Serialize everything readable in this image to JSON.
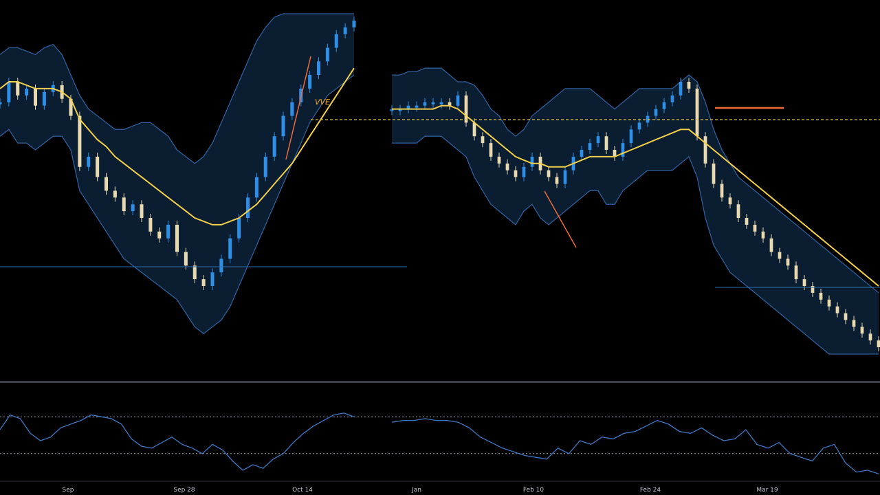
{
  "chart_data": [
    {
      "type": "line",
      "panel": "price",
      "description_of_style": "dark background candlestick price chart with filled bands and moving average",
      "title": "",
      "xlabel": "",
      "ylabel": "",
      "ylim": [
        0,
        100
      ],
      "grid": false,
      "colors": {
        "background": "#000000",
        "band_fill": "#0d2238",
        "band_edge": "#2f5f9a",
        "moving_average": "#f2d04a",
        "candle_up": "#2f8fe6",
        "candle_down": "#e8d9b0",
        "level_line": "#d9c23a",
        "support_line": "#2a6fb0",
        "trend_line": "#f06a3a"
      },
      "x_tick_labels": [
        "Sep",
        "Sep 28",
        "Oct 14",
        "Jan",
        "Feb 10",
        "Feb 24",
        "Mar 19",
        ""
      ],
      "annotation": "VVE",
      "segments": [
        {
          "name": "",
          "x": [
            0,
            1,
            2,
            3,
            4,
            5,
            6,
            7,
            8,
            9,
            10,
            11,
            12,
            13,
            14,
            15,
            16,
            17,
            18,
            19,
            20,
            21,
            22,
            23,
            24,
            25,
            26,
            27,
            28,
            29,
            30,
            31,
            32,
            33,
            34,
            35,
            36,
            37,
            38,
            39,
            40
          ],
          "close": [
            74,
            80,
            76,
            78,
            73,
            77,
            79,
            75,
            70,
            55,
            58,
            52,
            48,
            46,
            42,
            44,
            40,
            36,
            34,
            38,
            30,
            26,
            22,
            20,
            24,
            28,
            34,
            40,
            46,
            52,
            58,
            64,
            70,
            74,
            78,
            82,
            86,
            90,
            94,
            96,
            98
          ],
          "upper": [
            88,
            90,
            90,
            89,
            88,
            90,
            91,
            88,
            82,
            76,
            72,
            70,
            68,
            66,
            66,
            67,
            68,
            68,
            66,
            64,
            60,
            58,
            56,
            58,
            62,
            68,
            74,
            80,
            86,
            92,
            96,
            99,
            100,
            100,
            100,
            100,
            100,
            100,
            100,
            100,
            100
          ],
          "lower": [
            64,
            66,
            62,
            62,
            60,
            62,
            64,
            64,
            60,
            48,
            44,
            40,
            36,
            32,
            28,
            26,
            24,
            22,
            20,
            18,
            16,
            12,
            8,
            6,
            8,
            10,
            14,
            20,
            26,
            32,
            38,
            44,
            50,
            56,
            62,
            68,
            72,
            76,
            78,
            80,
            82
          ],
          "ma": [
            78,
            80,
            80,
            79,
            78,
            78,
            78,
            77,
            75,
            69,
            66,
            63,
            61,
            58,
            56,
            54,
            52,
            50,
            48,
            46,
            44,
            42,
            40,
            39,
            38,
            38,
            39,
            40,
            42,
            44,
            47,
            50,
            53,
            56,
            60,
            64,
            68,
            72,
            76,
            80,
            84
          ]
        },
        {
          "name": "",
          "x": [
            0,
            1,
            2,
            3,
            4,
            5,
            6,
            7,
            8,
            9,
            10,
            11,
            12,
            13,
            14,
            15,
            16,
            17,
            18,
            19,
            20,
            21,
            22,
            23,
            24,
            25,
            26,
            27,
            28,
            29,
            30,
            31,
            32,
            33,
            34,
            35,
            36,
            37,
            38,
            39,
            40,
            41,
            42,
            43,
            44,
            45,
            46,
            47,
            48,
            49,
            50,
            51,
            52,
            53,
            54,
            55,
            56,
            57,
            58,
            59
          ],
          "close": [
            72,
            72,
            73,
            73,
            74,
            74,
            74,
            73,
            76,
            68,
            64,
            62,
            58,
            56,
            54,
            52,
            55,
            58,
            54,
            52,
            50,
            54,
            58,
            60,
            62,
            64,
            60,
            58,
            62,
            66,
            68,
            70,
            72,
            74,
            76,
            80,
            78,
            64,
            56,
            50,
            46,
            44,
            40,
            38,
            36,
            34,
            30,
            28,
            26,
            22,
            20,
            18,
            16,
            14,
            12,
            10,
            8,
            6,
            4,
            2
          ],
          "upper": [
            82,
            82,
            83,
            83,
            84,
            84,
            84,
            82,
            80,
            80,
            79,
            76,
            72,
            70,
            66,
            64,
            66,
            70,
            72,
            74,
            76,
            78,
            78,
            78,
            78,
            76,
            74,
            72,
            74,
            76,
            78,
            78,
            78,
            78,
            78,
            80,
            82,
            80,
            74,
            66,
            60,
            56,
            52,
            50,
            48,
            46,
            44,
            42,
            40,
            38,
            36,
            34,
            32,
            30,
            28,
            26,
            24,
            22,
            20,
            18
          ],
          "lower": [
            62,
            62,
            62,
            62,
            64,
            64,
            64,
            62,
            60,
            58,
            52,
            48,
            44,
            42,
            40,
            38,
            42,
            44,
            40,
            38,
            40,
            42,
            44,
            46,
            48,
            48,
            44,
            44,
            48,
            50,
            52,
            54,
            54,
            54,
            54,
            56,
            58,
            52,
            40,
            32,
            28,
            24,
            22,
            20,
            18,
            16,
            14,
            12,
            10,
            8,
            6,
            4,
            2,
            0,
            0,
            0,
            0,
            0,
            0,
            0
          ],
          "ma": [
            72,
            72,
            72,
            72,
            72,
            72,
            73,
            73,
            72,
            70,
            68,
            66,
            64,
            62,
            60,
            58,
            57,
            56,
            56,
            55,
            55,
            55,
            56,
            57,
            58,
            58,
            58,
            58,
            59,
            60,
            61,
            62,
            63,
            64,
            65,
            66,
            66,
            64,
            62,
            60,
            58,
            56,
            54,
            52,
            50,
            48,
            46,
            44,
            42,
            40,
            38,
            36,
            34,
            32,
            30,
            28,
            26,
            24,
            22,
            20
          ]
        }
      ]
    },
    {
      "type": "line",
      "panel": "oscillator",
      "ylim": [
        0,
        100
      ],
      "grid": false,
      "levels": [
        70,
        30
      ],
      "series": [
        {
          "name": "",
          "values": [
            56,
            72,
            68,
            52,
            44,
            48,
            58,
            62,
            66,
            72,
            70,
            68,
            62,
            46,
            38,
            36,
            42,
            48,
            40,
            36,
            30,
            40,
            34,
            22,
            12,
            18,
            14,
            24,
            30,
            42,
            52,
            60,
            66,
            72,
            74,
            70
          ]
        },
        {
          "name": "",
          "values": [
            64,
            66,
            66,
            68,
            66,
            66,
            64,
            58,
            48,
            42,
            36,
            32,
            28,
            26,
            24,
            36,
            30,
            44,
            40,
            48,
            46,
            52,
            54,
            60,
            66,
            62,
            54,
            52,
            58,
            50,
            44,
            46,
            56,
            40,
            36,
            42,
            30,
            26,
            22,
            36,
            40,
            20,
            10,
            12,
            8
          ]
        }
      ]
    }
  ]
}
